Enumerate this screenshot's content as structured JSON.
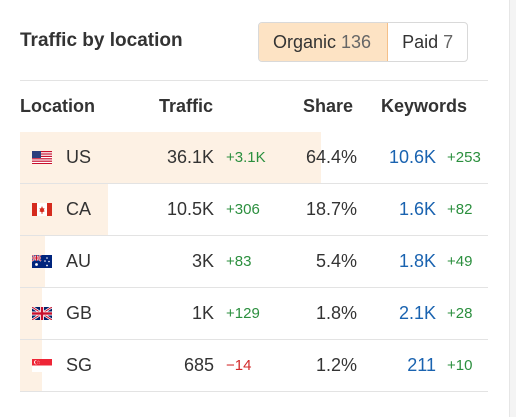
{
  "title": "Traffic by location",
  "toggle": {
    "organic_label": "Organic",
    "organic_count": "136",
    "paid_label": "Paid",
    "paid_count": "7"
  },
  "columns": {
    "location": "Location",
    "traffic": "Traffic",
    "share": "Share",
    "keywords": "Keywords"
  },
  "rows": [
    {
      "flag": "us-flag-icon",
      "code": "US",
      "traffic": "36.1K",
      "traffic_change": "+3.1K",
      "share": "64.4%",
      "keywords": "10.6K",
      "keywords_change": "+253",
      "share_fraction": 0.644
    },
    {
      "flag": "ca-flag-icon",
      "code": "CA",
      "traffic": "10.5K",
      "traffic_change": "+306",
      "share": "18.7%",
      "keywords": "1.6K",
      "keywords_change": "+82",
      "share_fraction": 0.187
    },
    {
      "flag": "au-flag-icon",
      "code": "AU",
      "traffic": "3K",
      "traffic_change": "+83",
      "share": "5.4%",
      "keywords": "1.8K",
      "keywords_change": "+49",
      "share_fraction": 0.054
    },
    {
      "flag": "gb-flag-icon",
      "code": "GB",
      "traffic": "1K",
      "traffic_change": "+129",
      "share": "1.8%",
      "keywords": "2.1K",
      "keywords_change": "+28",
      "share_fraction": 0.018
    },
    {
      "flag": "sg-flag-icon",
      "code": "SG",
      "traffic": "685",
      "traffic_change": "−14",
      "share": "1.2%",
      "keywords": "211",
      "keywords_change": "+10",
      "share_fraction": 0.012
    }
  ],
  "colors": {
    "active_toggle_bg": "#fde3c4",
    "share_bar": "#fdf1e4",
    "positive": "#2b8f3e",
    "negative": "#d22a2a",
    "link": "#1a63b0"
  }
}
